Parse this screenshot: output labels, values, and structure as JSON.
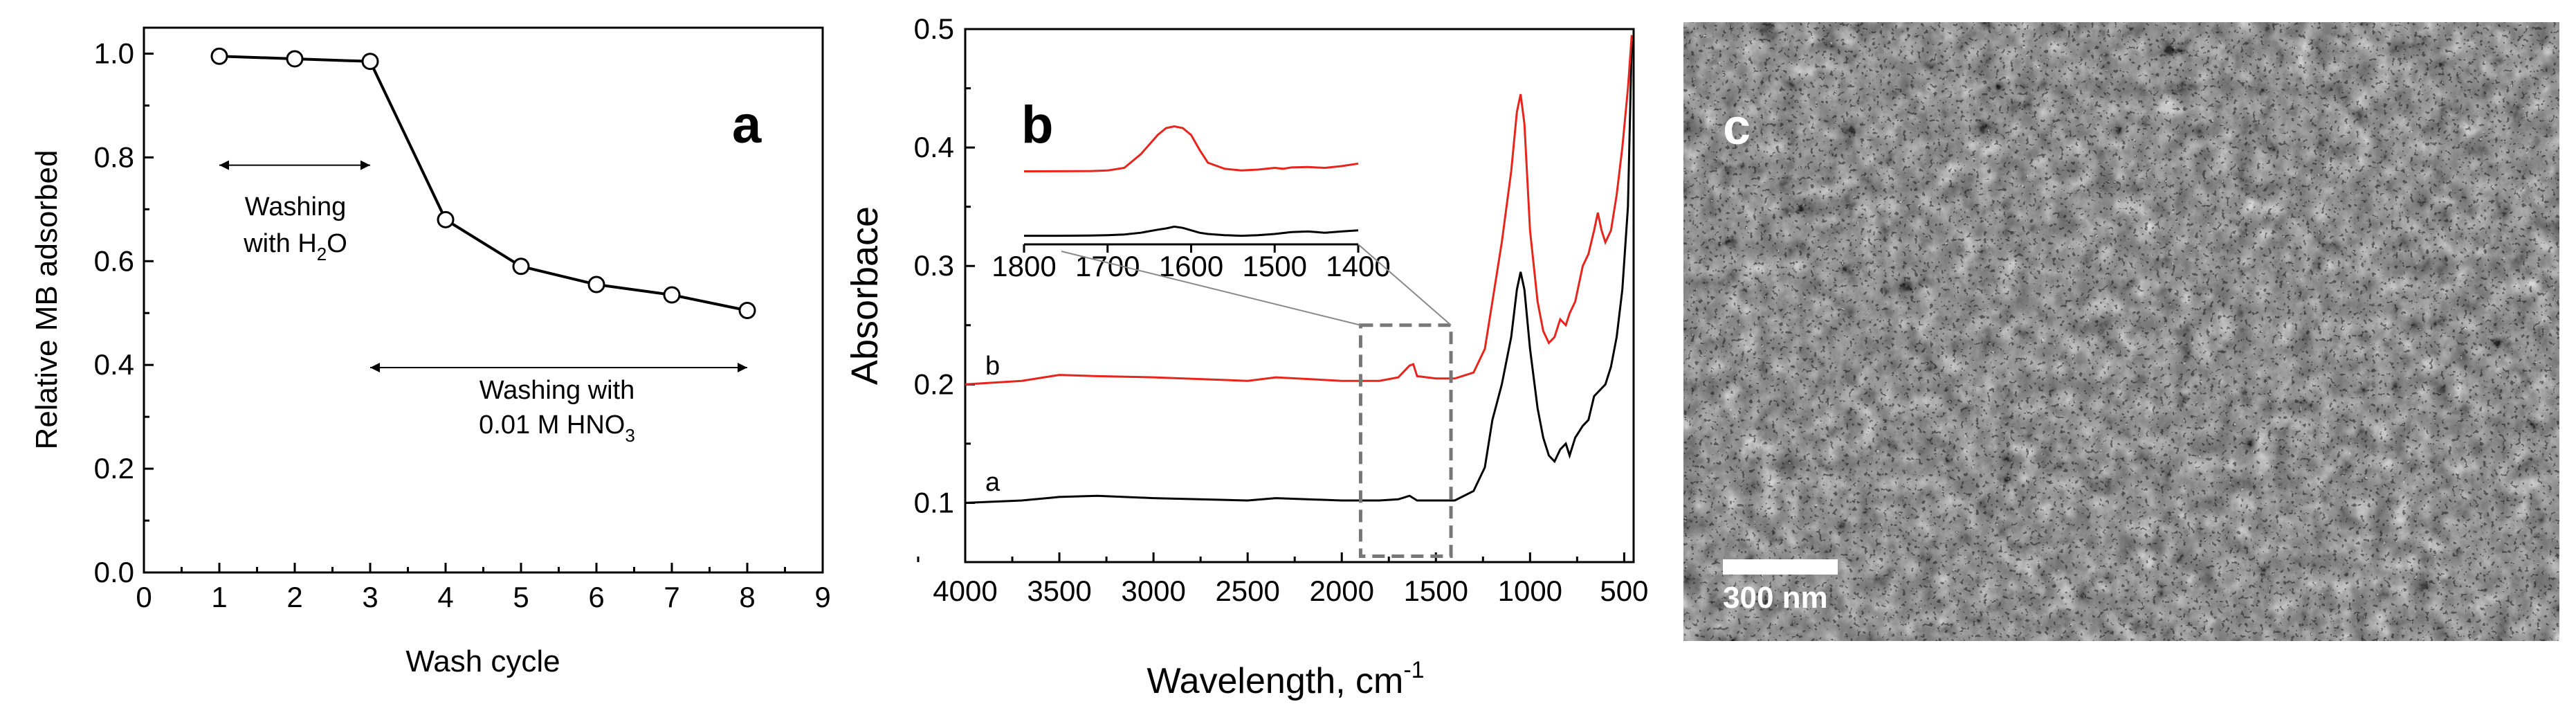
{
  "chart_data": [
    {
      "panel": "a",
      "type": "line",
      "xlabel": "Wash cycle",
      "ylabel": "Relative MB adsorbed",
      "xlim": [
        0,
        9
      ],
      "ylim": [
        0.0,
        1.05
      ],
      "x_ticks": [
        "0",
        "1",
        "2",
        "3",
        "4",
        "5",
        "6",
        "7",
        "8",
        "9"
      ],
      "y_ticks": [
        "0.0",
        "0.2",
        "0.4",
        "0.6",
        "0.8",
        "1.0"
      ],
      "x": [
        1,
        2,
        3,
        4,
        5,
        6,
        7,
        8
      ],
      "values": [
        0.995,
        0.99,
        0.985,
        0.68,
        0.59,
        0.555,
        0.535,
        0.505
      ],
      "marker": "open-circle",
      "annotations": {
        "water_line1": "Washing",
        "water_line2_prefix": "with H",
        "water_line2_sub": "2",
        "water_line2_suffix": "O",
        "water_range": [
          1,
          3
        ],
        "acid_line1": "Washing with",
        "acid_line2_prefix": "0.01 M HNO",
        "acid_line2_sub": "3",
        "acid_range": [
          3,
          8
        ]
      }
    },
    {
      "panel": "b",
      "type": "line",
      "xlabel_prefix": "Wavelength, cm",
      "xlabel_sup": "-1",
      "ylabel": "Absorbace",
      "xlim": [
        4000,
        450
      ],
      "ylim": [
        0.05,
        0.5
      ],
      "x_ticks": [
        "4000",
        "3500",
        "3000",
        "2500",
        "2000",
        "1500",
        "1000",
        "500"
      ],
      "y_ticks": [
        "0.1",
        "0.2",
        "0.3",
        "0.4",
        "0.5"
      ],
      "series": [
        {
          "name": "a",
          "color": "#000000",
          "x": [
            4000,
            3700,
            3500,
            3300,
            3000,
            2500,
            2350,
            2000,
            1800,
            1700,
            1640,
            1600,
            1500,
            1400,
            1300,
            1240,
            1200,
            1150,
            1100,
            1070,
            1050,
            1030,
            1000,
            960,
            930,
            900,
            870,
            840,
            810,
            790,
            760,
            720,
            690,
            660,
            630,
            600,
            570,
            540,
            510,
            480,
            460
          ],
          "values": [
            0.1,
            0.102,
            0.105,
            0.106,
            0.104,
            0.102,
            0.104,
            0.102,
            0.102,
            0.103,
            0.106,
            0.102,
            0.102,
            0.102,
            0.11,
            0.13,
            0.17,
            0.2,
            0.24,
            0.28,
            0.295,
            0.28,
            0.23,
            0.18,
            0.155,
            0.14,
            0.135,
            0.145,
            0.15,
            0.14,
            0.155,
            0.165,
            0.17,
            0.19,
            0.195,
            0.2,
            0.215,
            0.24,
            0.28,
            0.35,
            0.49
          ]
        },
        {
          "name": "b",
          "color": "#e8251c",
          "x": [
            4000,
            3700,
            3500,
            3300,
            3000,
            2500,
            2350,
            2000,
            1800,
            1700,
            1640,
            1620,
            1600,
            1500,
            1400,
            1300,
            1240,
            1200,
            1150,
            1100,
            1070,
            1050,
            1030,
            1000,
            960,
            930,
            900,
            870,
            840,
            810,
            790,
            760,
            720,
            690,
            660,
            640,
            620,
            600,
            570,
            540,
            510,
            480,
            460
          ],
          "values": [
            0.2,
            0.203,
            0.208,
            0.207,
            0.206,
            0.203,
            0.206,
            0.203,
            0.203,
            0.206,
            0.216,
            0.217,
            0.207,
            0.205,
            0.205,
            0.21,
            0.23,
            0.27,
            0.32,
            0.38,
            0.43,
            0.445,
            0.42,
            0.33,
            0.27,
            0.245,
            0.235,
            0.24,
            0.255,
            0.25,
            0.26,
            0.27,
            0.3,
            0.31,
            0.33,
            0.345,
            0.33,
            0.32,
            0.33,
            0.36,
            0.4,
            0.45,
            0.495
          ]
        }
      ],
      "curve_labels": [
        "b",
        "a"
      ],
      "highlight_box_x": [
        1900,
        1420
      ],
      "highlight_box_y": [
        0.055,
        0.25
      ],
      "inset": {
        "xlim": [
          1800,
          1400
        ],
        "x_ticks": [
          "1800",
          "1700",
          "1600",
          "1500",
          "1400"
        ],
        "series_b_x": [
          1800,
          1760,
          1720,
          1700,
          1680,
          1660,
          1640,
          1630,
          1620,
          1610,
          1600,
          1590,
          1580,
          1560,
          1540,
          1520,
          1500,
          1490,
          1480,
          1460,
          1440,
          1420,
          1400
        ],
        "series_b": [
          0.3,
          0.301,
          0.303,
          0.31,
          0.34,
          0.5,
          0.72,
          0.8,
          0.82,
          0.8,
          0.72,
          0.55,
          0.4,
          0.33,
          0.31,
          0.32,
          0.34,
          0.33,
          0.345,
          0.35,
          0.34,
          0.36,
          0.39
        ],
        "series_a_x": [
          1800,
          1760,
          1720,
          1700,
          1680,
          1660,
          1640,
          1630,
          1620,
          1610,
          1600,
          1590,
          1580,
          1560,
          1540,
          1520,
          1500,
          1480,
          1460,
          1440,
          1420,
          1400
        ],
        "series_a": [
          0.05,
          0.05,
          0.055,
          0.06,
          0.07,
          0.1,
          0.15,
          0.17,
          0.2,
          0.18,
          0.14,
          0.1,
          0.08,
          0.06,
          0.05,
          0.06,
          0.08,
          0.11,
          0.12,
          0.1,
          0.12,
          0.14
        ]
      }
    },
    {
      "panel": "c",
      "type": "image",
      "description_label": "c",
      "scale_bar": "300 nm"
    }
  ]
}
